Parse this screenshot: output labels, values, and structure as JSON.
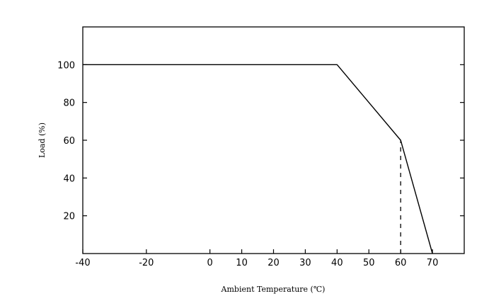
{
  "chart_data": {
    "type": "line",
    "xlabel": "Ambient Temperature (℃)",
    "ylabel": "Load (%)",
    "xlim": [
      -40,
      80
    ],
    "ylim": [
      0,
      120
    ],
    "xticks": [
      -40,
      -20,
      0,
      10,
      20,
      30,
      40,
      50,
      60,
      70
    ],
    "xtick_labels": [
      "-40",
      "-20",
      "0",
      "10",
      "20",
      "30",
      "40",
      "50",
      "60",
      "70"
    ],
    "yticks": [
      20,
      40,
      60,
      80,
      100
    ],
    "ytick_labels": [
      "20",
      "40",
      "60",
      "80",
      "100"
    ],
    "grid": false,
    "series": [
      {
        "x": [
          -40,
          40,
          60,
          70
        ],
        "y": [
          100,
          100,
          60,
          0
        ]
      }
    ],
    "reference_lines": [
      {
        "style": "dashed",
        "x": [
          60,
          60
        ],
        "y": [
          0,
          60
        ]
      }
    ]
  }
}
